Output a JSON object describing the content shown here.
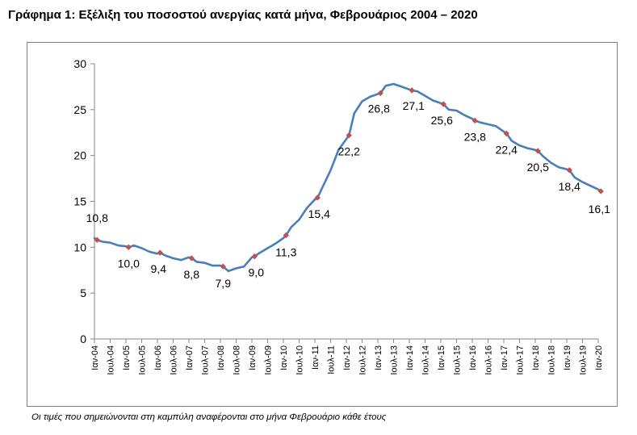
{
  "title": "Γράφημα 1: Εξέλιξη του ποσοστού ανεργίας κατά μήνα, Φεβρουάριος 2004 – 2020",
  "note": "Οι τιμές που σημειώνονται στη καμπύλη αναφέρονται στο μήνα Φεβρουάριο κάθε έτους",
  "colors": {
    "line": "#4A7EBB",
    "marker": "#C0504D",
    "axis": "#868686",
    "frame": "#808080"
  },
  "chart_data": {
    "type": "line",
    "title": "",
    "xlabel": "",
    "ylabel": "",
    "ylim": [
      0,
      30
    ],
    "yticks": [
      0,
      5,
      10,
      15,
      20,
      25,
      30
    ],
    "grid": false,
    "legend": "none",
    "x_tick_labels": [
      "Ιαν-04",
      "Ιουλ-04",
      "Ιαν-05",
      "Ιουλ-05",
      "Ιαν-06",
      "Ιουλ-06",
      "Ιαν-07",
      "Ιουλ-07",
      "Ιαν-08",
      "Ιουλ-08",
      "Ιαν-09",
      "Ιουλ-09",
      "Ιαν-10",
      "Ιουλ-10",
      "Ιαν-11",
      "Ιουλ-11",
      "Ιαν-12",
      "Ιουλ-12",
      "Ιαν-13",
      "Ιουλ-13",
      "Ιαν-14",
      "Ιουλ-14",
      "Ιαν-15",
      "Ιουλ-15",
      "Ιαν-16",
      "Ιουλ-16",
      "Ιαν-17",
      "Ιουλ-17",
      "Ιαν-18",
      "Ιουλ-18",
      "Ιαν-19",
      "Ιουλ-19",
      "Ιαν-20"
    ],
    "series": [
      {
        "x": [
          "2004-01",
          "2004-02",
          "2004-04",
          "2004-07",
          "2004-10",
          "2005-01",
          "2005-02",
          "2005-04",
          "2005-07",
          "2005-10",
          "2006-01",
          "2006-02",
          "2006-04",
          "2006-07",
          "2006-10",
          "2007-01",
          "2007-02",
          "2007-04",
          "2007-07",
          "2007-10",
          "2008-01",
          "2008-02",
          "2008-04",
          "2008-07",
          "2008-10",
          "2009-01",
          "2009-02",
          "2009-04",
          "2009-07",
          "2009-10",
          "2010-01",
          "2010-02",
          "2010-04",
          "2010-07",
          "2010-10",
          "2011-01",
          "2011-02",
          "2011-04",
          "2011-07",
          "2011-10",
          "2012-01",
          "2012-02",
          "2012-04",
          "2012-07",
          "2012-10",
          "2013-01",
          "2013-02",
          "2013-04",
          "2013-07",
          "2013-10",
          "2014-01",
          "2014-02",
          "2014-04",
          "2014-07",
          "2014-10",
          "2015-01",
          "2015-02",
          "2015-04",
          "2015-07",
          "2015-10",
          "2016-01",
          "2016-02",
          "2016-04",
          "2016-07",
          "2016-10",
          "2017-01",
          "2017-02",
          "2017-04",
          "2017-07",
          "2017-10",
          "2018-01",
          "2018-02",
          "2018-04",
          "2018-07",
          "2018-10",
          "2019-01",
          "2019-02",
          "2019-04",
          "2019-07",
          "2019-10",
          "2020-01",
          "2020-02"
        ],
        "values": [
          11.0,
          10.8,
          10.6,
          10.5,
          10.2,
          10.1,
          10.0,
          10.2,
          9.9,
          9.5,
          9.3,
          9.4,
          9.1,
          8.8,
          8.6,
          8.9,
          8.8,
          8.4,
          8.3,
          8.0,
          8.0,
          7.9,
          7.4,
          7.7,
          7.9,
          8.9,
          9.0,
          9.4,
          9.9,
          10.4,
          11.0,
          11.3,
          12.2,
          13.0,
          14.3,
          15.2,
          15.4,
          16.6,
          18.4,
          20.6,
          21.8,
          22.2,
          24.6,
          25.9,
          26.4,
          26.7,
          26.8,
          27.6,
          27.8,
          27.5,
          27.2,
          27.1,
          27.0,
          26.5,
          26.0,
          25.7,
          25.6,
          25.0,
          24.9,
          24.4,
          24.0,
          23.8,
          23.6,
          23.4,
          23.2,
          22.6,
          22.4,
          21.6,
          21.1,
          20.8,
          20.6,
          20.5,
          19.9,
          19.2,
          18.7,
          18.5,
          18.4,
          17.6,
          17.1,
          16.7,
          16.3,
          16.1
        ]
      }
    ],
    "annotations": [
      {
        "x": "2004-02",
        "value": 10.8,
        "label": "10,8"
      },
      {
        "x": "2005-02",
        "value": 10.0,
        "label": "10,0"
      },
      {
        "x": "2006-02",
        "value": 9.4,
        "label": "9,4"
      },
      {
        "x": "2007-02",
        "value": 8.8,
        "label": "8,8"
      },
      {
        "x": "2008-02",
        "value": 7.9,
        "label": "7,9"
      },
      {
        "x": "2009-02",
        "value": 9.0,
        "label": "9,0"
      },
      {
        "x": "2010-02",
        "value": 11.3,
        "label": "11,3"
      },
      {
        "x": "2011-02",
        "value": 15.4,
        "label": "15,4"
      },
      {
        "x": "2012-02",
        "value": 22.2,
        "label": "22,2"
      },
      {
        "x": "2013-02",
        "value": 26.8,
        "label": "26,8"
      },
      {
        "x": "2014-02",
        "value": 27.1,
        "label": "27,1"
      },
      {
        "x": "2015-02",
        "value": 25.6,
        "label": "25,6"
      },
      {
        "x": "2016-02",
        "value": 23.8,
        "label": "23,8"
      },
      {
        "x": "2017-02",
        "value": 22.4,
        "label": "22,4"
      },
      {
        "x": "2018-02",
        "value": 20.5,
        "label": "20,5"
      },
      {
        "x": "2019-02",
        "value": 18.4,
        "label": "18,4"
      },
      {
        "x": "2020-02",
        "value": 16.1,
        "label": "16,1"
      }
    ]
  }
}
